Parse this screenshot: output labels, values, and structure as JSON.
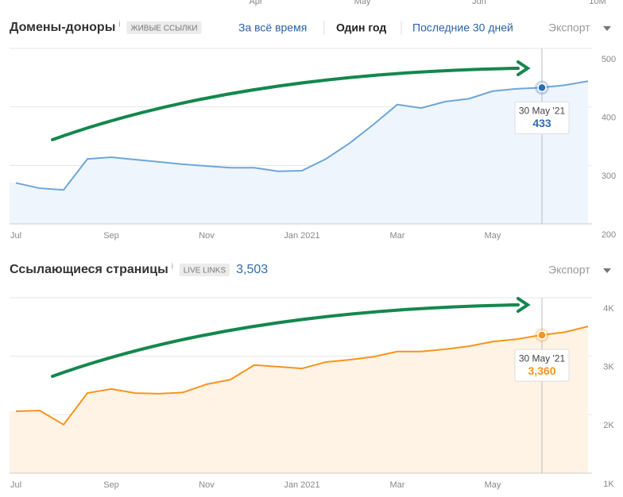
{
  "top_axis": {
    "labels": [
      "Apr",
      "May",
      "Jun",
      "10M"
    ]
  },
  "chart_data": [
    {
      "type": "line",
      "title": "Домены-доноры",
      "info": "i",
      "badge": "ЖИВЫЕ ССЫЛКИ",
      "tabs": [
        {
          "label": "За всё время",
          "selected": false
        },
        {
          "label": "Один год",
          "selected": true
        },
        {
          "label": "Последние 30 дней",
          "selected": false
        }
      ],
      "export": "Экспорт",
      "categories": [
        "Jul",
        null,
        null,
        null,
        "Sep",
        null,
        null,
        null,
        "Nov",
        null,
        null,
        null,
        "Jan 2021",
        null,
        null,
        null,
        "Mar",
        null,
        null,
        null,
        "May",
        null,
        null,
        null,
        null
      ],
      "values": [
        270,
        261,
        258,
        311,
        314,
        310,
        306,
        302,
        299,
        296,
        296,
        290,
        291,
        311,
        338,
        370,
        404,
        398,
        409,
        414,
        427,
        431,
        433,
        437,
        444
      ],
      "color": "#6ea6d8",
      "fill_color": "#eef5fd",
      "ylim": [
        200,
        500
      ],
      "yticks": [
        200,
        300,
        400,
        500
      ],
      "grid": true,
      "tooltip": {
        "date": "30 May '21",
        "value": 433,
        "color": "#2f6cae"
      }
    },
    {
      "type": "line",
      "title": "Ссылающиеся страницы",
      "info": "i",
      "badge": "LIVE LINKS",
      "total": "3,503",
      "export": "Экспорт",
      "categories": [
        "Jul",
        null,
        null,
        null,
        "Sep",
        null,
        null,
        null,
        "Nov",
        null,
        null,
        null,
        "Jan 2021",
        null,
        null,
        null,
        "Mar",
        null,
        null,
        null,
        "May",
        null,
        null,
        null,
        null
      ],
      "values": [
        2058,
        2070,
        1830,
        2370,
        2440,
        2370,
        2360,
        2380,
        2520,
        2600,
        2850,
        2820,
        2790,
        2900,
        2940,
        2990,
        3080,
        3080,
        3120,
        3170,
        3250,
        3290,
        3360,
        3410,
        3510
      ],
      "color": "#f7941d",
      "fill_color": "#fef3e5",
      "ylim": [
        1000,
        4000
      ],
      "yticks": [
        {
          "value": 1000,
          "label": "1K"
        },
        {
          "value": 2000,
          "label": "2K"
        },
        {
          "value": 3000,
          "label": "3K"
        },
        {
          "value": 4000,
          "label": "4K"
        }
      ],
      "grid": true,
      "tooltip": {
        "date": "30 May '21",
        "value": 3360,
        "value_label": "3,360",
        "color": "#f7941d"
      }
    }
  ]
}
